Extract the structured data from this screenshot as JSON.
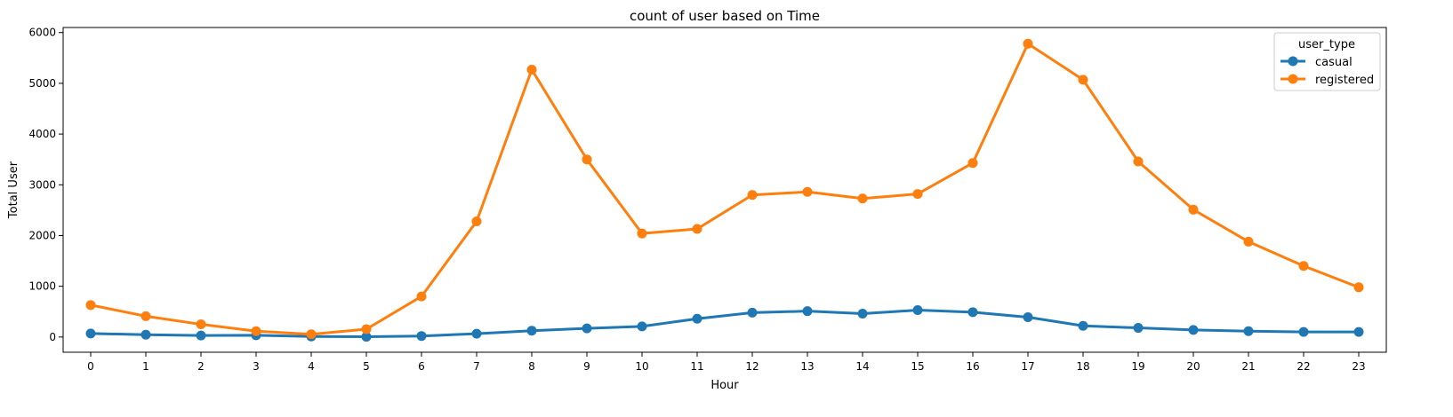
{
  "chart_data": {
    "type": "line",
    "title": "count of user based on Time",
    "xlabel": "Hour",
    "ylabel": "Total User",
    "x": [
      "0",
      "1",
      "2",
      "3",
      "4",
      "5",
      "6",
      "7",
      "8",
      "9",
      "10",
      "11",
      "12",
      "13",
      "14",
      "15",
      "16",
      "17",
      "18",
      "19",
      "20",
      "21",
      "22",
      "23"
    ],
    "ylim": [
      -300,
      6100
    ],
    "yticks": [
      "0",
      "1000",
      "2000",
      "3000",
      "4000",
      "5000",
      "6000"
    ],
    "grid": false,
    "legend": {
      "title": "user_type",
      "placement": "top-right"
    },
    "series": [
      {
        "name": "casual",
        "color": "#1f77b4",
        "values": [
          70,
          45,
          30,
          35,
          10,
          5,
          20,
          65,
          125,
          170,
          210,
          360,
          480,
          510,
          460,
          530,
          490,
          390,
          220,
          180,
          140,
          115,
          100,
          100
        ]
      },
      {
        "name": "registered",
        "color": "#ff7f0e",
        "values": [
          630,
          410,
          250,
          115,
          55,
          155,
          800,
          2280,
          5270,
          3500,
          2040,
          2130,
          2800,
          2860,
          2730,
          2820,
          3430,
          5780,
          5070,
          3460,
          2510,
          1880,
          1400,
          980
        ]
      }
    ]
  }
}
